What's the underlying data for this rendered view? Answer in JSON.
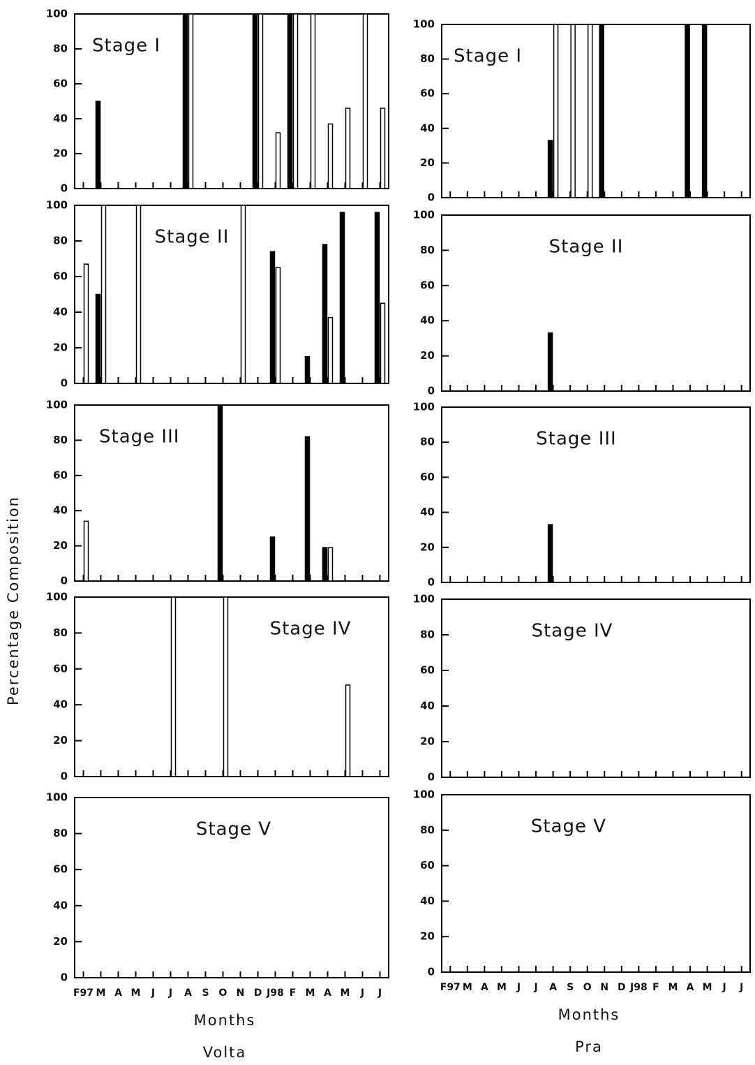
{
  "chart_data": [
    {
      "type": "bar",
      "title": "Stage I",
      "ylabel": "Percentage Composition",
      "ylim": [
        0,
        100
      ],
      "yticks": [
        0,
        20,
        40,
        60,
        80,
        100
      ],
      "series": [
        {
          "color": "#000000",
          "values": [
            null,
            50,
            null,
            null,
            null,
            null,
            100,
            null,
            null,
            null,
            100,
            null,
            100,
            null,
            null,
            null,
            null,
            null
          ]
        },
        {
          "color": "#ffffff",
          "values": [
            null,
            null,
            null,
            null,
            null,
            null,
            100,
            null,
            null,
            null,
            100,
            32,
            100,
            100,
            37,
            46,
            100,
            46
          ]
        }
      ]
    },
    {
      "type": "bar",
      "title": "Stage II",
      "ylim": [
        0,
        100
      ],
      "yticks": [
        0,
        20,
        40,
        60,
        80,
        100
      ],
      "series": [
        {
          "color": "#000000",
          "values": [
            null,
            50,
            null,
            null,
            null,
            null,
            null,
            null,
            null,
            null,
            null,
            74,
            null,
            15,
            78,
            96,
            null,
            96
          ]
        },
        {
          "color": "#ffffff",
          "values": [
            67,
            100,
            null,
            100,
            null,
            null,
            null,
            null,
            null,
            100,
            null,
            65,
            null,
            null,
            37,
            null,
            null,
            45
          ]
        }
      ]
    },
    {
      "type": "bar",
      "title": "Stage III",
      "ylim": [
        0,
        100
      ],
      "yticks": [
        0,
        20,
        40,
        60,
        80,
        100
      ],
      "series": [
        {
          "color": "#000000",
          "values": [
            null,
            null,
            null,
            null,
            null,
            null,
            null,
            null,
            100,
            null,
            null,
            25,
            null,
            82,
            19,
            null,
            null,
            null
          ]
        },
        {
          "color": "#ffffff",
          "values": [
            34,
            null,
            null,
            null,
            null,
            null,
            null,
            null,
            null,
            null,
            null,
            null,
            null,
            null,
            19,
            null,
            null,
            null
          ]
        }
      ]
    },
    {
      "type": "bar",
      "title": "Stage IV",
      "ylim": [
        0,
        100
      ],
      "yticks": [
        0,
        20,
        40,
        60,
        80,
        100
      ],
      "series": [
        {
          "color": "#ffffff",
          "values": [
            null,
            null,
            null,
            null,
            null,
            100,
            null,
            null,
            100,
            null,
            null,
            null,
            null,
            null,
            null,
            51,
            null,
            null
          ]
        }
      ]
    },
    {
      "type": "bar",
      "title": "Stage V",
      "ylim": [
        0,
        100
      ],
      "yticks": [
        0,
        20,
        40,
        60,
        80,
        100
      ],
      "categories": [
        "F97",
        "M",
        "A",
        "M",
        "J",
        "J",
        "A",
        "S",
        "O",
        "N",
        "D",
        "J98",
        "F",
        "M",
        "A",
        "M",
        "J",
        "J"
      ],
      "xlabel": "Months",
      "caption": "Volta",
      "series": []
    },
    {
      "type": "bar",
      "title": "Stage I",
      "ylim": [
        0,
        100
      ],
      "yticks": [
        0,
        20,
        40,
        60,
        80,
        100
      ],
      "series": [
        {
          "color": "#000000",
          "values": [
            null,
            null,
            null,
            null,
            null,
            null,
            33,
            null,
            null,
            100,
            null,
            null,
            null,
            null,
            100,
            100,
            null,
            null
          ]
        },
        {
          "color": "#ffffff",
          "values": [
            null,
            null,
            null,
            null,
            null,
            null,
            100,
            100,
            100,
            null,
            null,
            null,
            null,
            null,
            null,
            null,
            null,
            null
          ]
        }
      ]
    },
    {
      "type": "bar",
      "title": "Stage II",
      "ylim": [
        0,
        100
      ],
      "yticks": [
        0,
        20,
        40,
        60,
        80,
        100
      ],
      "series": [
        {
          "color": "#000000",
          "values": [
            null,
            null,
            null,
            null,
            null,
            null,
            33,
            null,
            null,
            null,
            null,
            null,
            null,
            null,
            null,
            null,
            null,
            null
          ]
        }
      ]
    },
    {
      "type": "bar",
      "title": "Stage III",
      "ylim": [
        0,
        100
      ],
      "yticks": [
        0,
        20,
        40,
        60,
        80,
        100
      ],
      "series": [
        {
          "color": "#000000",
          "values": [
            null,
            null,
            null,
            null,
            null,
            null,
            33,
            null,
            null,
            null,
            null,
            null,
            null,
            null,
            null,
            null,
            null,
            null
          ]
        }
      ]
    },
    {
      "type": "bar",
      "title": "Stage IV",
      "ylim": [
        0,
        100
      ],
      "yticks": [
        0,
        20,
        40,
        60,
        80,
        100
      ],
      "series": []
    },
    {
      "type": "bar",
      "title": "Stage V",
      "ylim": [
        0,
        100
      ],
      "yticks": [
        0,
        20,
        40,
        60,
        80,
        100
      ],
      "categories": [
        "F97",
        "M",
        "A",
        "M",
        "J",
        "J",
        "A",
        "S",
        "O",
        "N",
        "D",
        "J98",
        "F",
        "M",
        "A",
        "M",
        "J",
        "J"
      ],
      "xlabel": "Months",
      "caption": "Pra",
      "series": []
    }
  ]
}
